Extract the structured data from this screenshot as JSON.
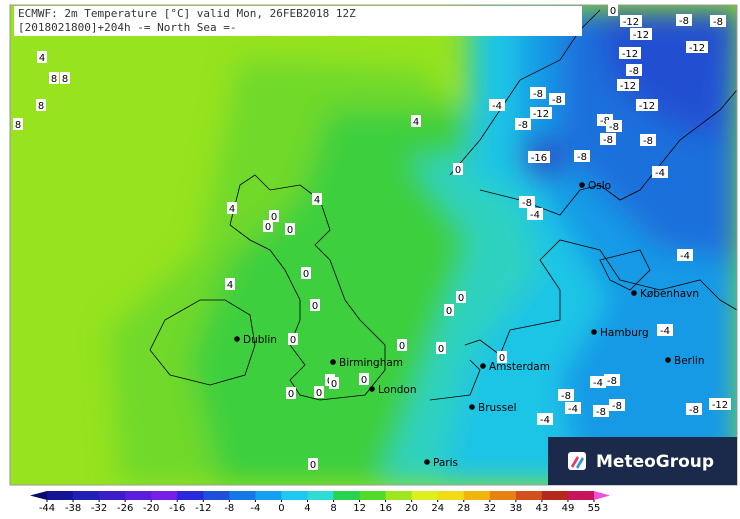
{
  "header": {
    "line1": "ECMWF: 2m Temperature [°C] valid Mon, 26FEB2018 12Z",
    "line2": "[2018021800]+204h  -= North Sea =-"
  },
  "cities": [
    "Dublin",
    "Birmingham",
    "London",
    "Amsterdam",
    "Brussel",
    "Paris",
    "Hamburg",
    "København",
    "Berlin",
    "Oslo"
  ],
  "contour_labels": [
    -12,
    -8,
    -8,
    -12,
    -12,
    -12,
    -8,
    -12,
    -8,
    -8,
    -4,
    -12,
    -12,
    -8,
    -8,
    -8,
    -8,
    -8,
    -16,
    -8,
    -4,
    -8,
    -4,
    -4,
    -4,
    -4,
    -8,
    -8,
    -4,
    -8,
    -8,
    -4,
    -8,
    -12,
    4,
    8,
    8,
    8,
    8,
    4,
    0,
    4,
    4,
    0,
    0,
    0,
    0,
    4,
    0,
    0,
    0,
    0,
    0,
    0,
    0,
    0,
    0,
    0,
    0,
    0,
    0,
    0
  ],
  "colorbar": {
    "ticks": [
      -44,
      -38,
      -32,
      -26,
      -20,
      -16,
      -12,
      -8,
      -4,
      0,
      4,
      8,
      12,
      16,
      20,
      24,
      28,
      32,
      38,
      43,
      49,
      55
    ]
  },
  "logo": "MeteoGroup"
}
